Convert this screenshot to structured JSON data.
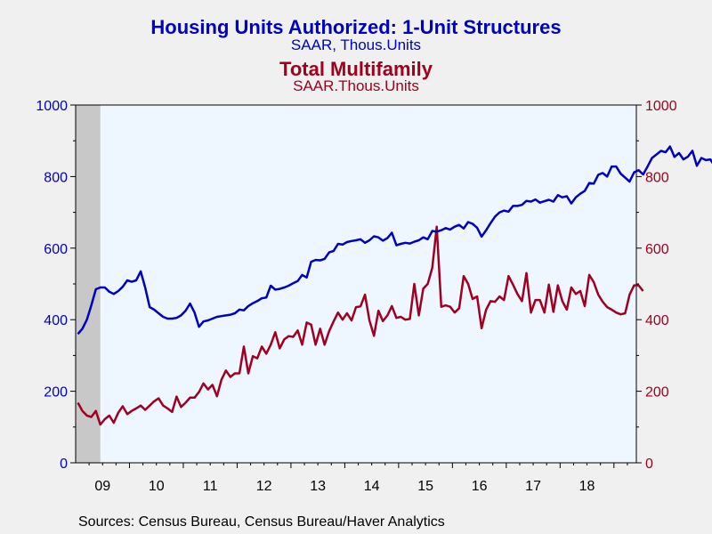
{
  "chart_data": {
    "type": "line",
    "title": "Housing Units Authorized: 1-Unit Structures",
    "subtitle": "SAAR, Thous.Units",
    "title2": "Total Multifamily",
    "subtitle2": "SAAR.Thous.Units",
    "x_tick_labels": [
      "09",
      "10",
      "11",
      "12",
      "13",
      "14",
      "15",
      "16",
      "17",
      "18"
    ],
    "y_left_ticks": [
      "0",
      "200",
      "400",
      "600",
      "800",
      "1000"
    ],
    "y_right_ticks": [
      "0",
      "200",
      "400",
      "600",
      "800",
      "1000"
    ],
    "ylim_left": [
      0,
      1000
    ],
    "ylim_right": [
      0,
      1000
    ],
    "x_start": "2009-01",
    "recession_shading": [
      "2009-01",
      "2009-06"
    ],
    "series": [
      {
        "name": "Housing Units Authorized: 1-Unit Structures",
        "axis": "left",
        "color": "#0000c0",
        "values": [
          360,
          375,
          400,
          440,
          485,
          490,
          490,
          478,
          472,
          480,
          492,
          510,
          506,
          510,
          535,
          490,
          435,
          428,
          418,
          408,
          403,
          403,
          405,
          412,
          425,
          445,
          420,
          380,
          395,
          398,
          403,
          408,
          410,
          412,
          414,
          418,
          428,
          426,
          438,
          446,
          452,
          460,
          462,
          495,
          484,
          486,
          490,
          495,
          502,
          508,
          525,
          518,
          562,
          567,
          566,
          570,
          588,
          592,
          612,
          610,
          617,
          620,
          622,
          625,
          615,
          622,
          633,
          630,
          621,
          628,
          643,
          608,
          612,
          615,
          613,
          618,
          622,
          630,
          625,
          648,
          646,
          650,
          656,
          652,
          660,
          665,
          655,
          673,
          668,
          657,
          632,
          650,
          670,
          688,
          700,
          705,
          702,
          718,
          718,
          721,
          732,
          730,
          736,
          727,
          731,
          735,
          730,
          748,
          742,
          745,
          725,
          742,
          752,
          760,
          782,
          780,
          805,
          810,
          800,
          828,
          828,
          808,
          797,
          786,
          812,
          818,
          806,
          828,
          852,
          862,
          872,
          868,
          884,
          855,
          866,
          848,
          856,
          872,
          830,
          852,
          846,
          848,
          828,
          822,
          822
        ]
      },
      {
        "name": "Total Multifamily",
        "axis": "right",
        "color": "#a00020",
        "values": [
          168,
          145,
          132,
          128,
          145,
          107,
          122,
          132,
          112,
          140,
          158,
          136,
          145,
          152,
          160,
          148,
          160,
          172,
          180,
          160,
          152,
          142,
          185,
          156,
          168,
          182,
          182,
          198,
          222,
          205,
          218,
          186,
          232,
          258,
          240,
          250,
          250,
          325,
          250,
          298,
          292,
          325,
          305,
          330,
          365,
          320,
          345,
          354,
          352,
          370,
          330,
          392,
          386,
          330,
          375,
          330,
          368,
          395,
          420,
          400,
          418,
          398,
          435,
          437,
          470,
          398,
          355,
          425,
          396,
          412,
          438,
          405,
          408,
          400,
          402,
          500,
          412,
          487,
          500,
          545,
          660,
          436,
          440,
          436,
          420,
          432,
          522,
          500,
          458,
          465,
          376,
          428,
          452,
          450,
          465,
          455,
          522,
          498,
          472,
          452,
          530,
          420,
          455,
          455,
          420,
          498,
          422,
          496,
          452,
          428,
          490,
          472,
          480,
          438,
          525,
          505,
          470,
          450,
          435,
          428,
          420,
          415,
          418,
          470,
          496,
          496,
          480
        ]
      }
    ]
  },
  "footer": "Sources:  Census Bureau, Census Bureau/Haver Analytics",
  "colors": {
    "series1": "#0000c0",
    "series2": "#a00020",
    "plot_bg": "#eef6ff",
    "recession": "#c8c8c8",
    "page_bg": "#f0f0f0"
  }
}
